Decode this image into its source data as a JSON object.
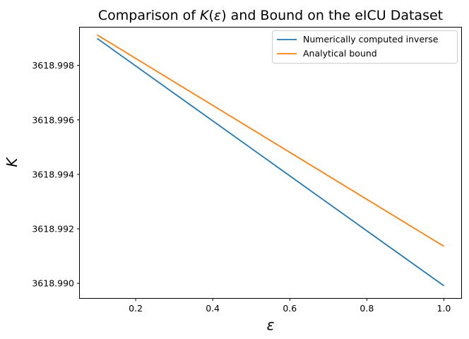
{
  "chart_data": {
    "type": "line",
    "title": "Comparison of K(ε) and Bound on the eICU Dataset",
    "title_parts": {
      "prefix": "Comparison of ",
      "k": "K",
      "open": "(",
      "eps": "ε",
      "close": ")",
      "suffix": " and Bound on the eICU Dataset"
    },
    "xlabel": "ε",
    "ylabel": "K",
    "xlim": [
      0.055,
      1.045
    ],
    "ylim": [
      3618.98946,
      3618.99939
    ],
    "xticks": [
      0.2,
      0.4,
      0.6,
      0.8,
      1.0
    ],
    "xtick_labels": [
      "0.2",
      "0.4",
      "0.6",
      "0.8",
      "1.0"
    ],
    "yticks": [
      3618.99,
      3618.992,
      3618.994,
      3618.996,
      3618.998
    ],
    "ytick_labels": [
      "3618.990",
      "3618.992",
      "3618.994",
      "3618.996",
      "3618.998"
    ],
    "grid": false,
    "legend_position": "top-right",
    "series": [
      {
        "name": "Numerically computed inverse",
        "color": "#1f77b4",
        "x": [
          0.1,
          1.0
        ],
        "y": [
          3618.99899,
          3618.98991
        ]
      },
      {
        "name": "Analytical bound",
        "color": "#ff7f0e",
        "x": [
          0.1,
          1.0
        ],
        "y": [
          3618.99912,
          3618.99136
        ]
      }
    ]
  }
}
